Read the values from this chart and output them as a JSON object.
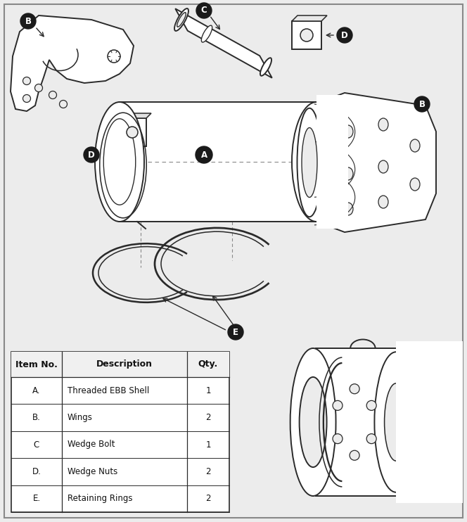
{
  "bg_color": "#ececec",
  "border_color": "#aaaaaa",
  "table_headers": [
    "Item No.",
    "Description",
    "Qty."
  ],
  "table_rows": [
    [
      "A.",
      "Threaded EBB Shell",
      "1"
    ],
    [
      "B.",
      "Wings",
      "2"
    ],
    [
      "C",
      "Wedge Bolt",
      "1"
    ],
    [
      "D.",
      "Wedge Nuts",
      "2"
    ],
    [
      "E.",
      "Retaining Rings",
      "2"
    ]
  ],
  "label_bg": "#1a1a1a",
  "label_fg": "#ffffff",
  "line_color": "#2a2a2a",
  "line_width": 1.4,
  "dashed_color": "#888888",
  "white": "#ffffff",
  "fig_w": 6.64,
  "fig_h": 7.42,
  "dpi": 100
}
